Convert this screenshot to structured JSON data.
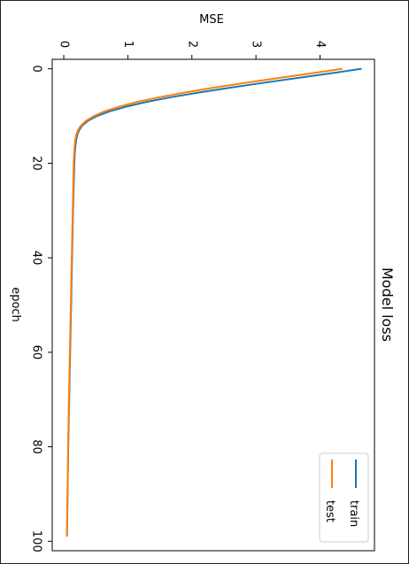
{
  "chart_data": {
    "type": "line",
    "orientation": "rotated-90-clockwise",
    "title": "Model loss",
    "xlabel": "epoch",
    "ylabel": "MSE",
    "xlim": [
      -2,
      102
    ],
    "ylim": [
      -0.18,
      4.85
    ],
    "x_ticks": [
      0,
      20,
      40,
      60,
      80,
      100
    ],
    "y_ticks": [
      0,
      1,
      2,
      3,
      4
    ],
    "legend_position": "lower-right",
    "grid": false,
    "series": [
      {
        "name": "train",
        "color": "#1f77b4",
        "x": [
          0,
          1,
          2,
          3,
          4,
          5,
          6,
          7,
          8,
          9,
          10,
          11,
          12,
          13,
          14,
          15,
          16,
          17,
          18,
          19,
          20,
          25,
          30,
          40,
          50,
          60,
          70,
          80,
          90,
          99
        ],
        "y": [
          4.65,
          4.15,
          3.62,
          3.1,
          2.6,
          2.12,
          1.68,
          1.3,
          0.98,
          0.72,
          0.52,
          0.38,
          0.29,
          0.24,
          0.21,
          0.195,
          0.185,
          0.178,
          0.172,
          0.168,
          0.165,
          0.155,
          0.145,
          0.13,
          0.115,
          0.1,
          0.085,
          0.07,
          0.06,
          0.05
        ]
      },
      {
        "name": "test",
        "color": "#ff7f0e",
        "x": [
          0,
          1,
          2,
          3,
          4,
          5,
          6,
          7,
          8,
          9,
          10,
          11,
          12,
          13,
          14,
          15,
          16,
          17,
          18,
          19,
          20,
          25,
          30,
          40,
          50,
          60,
          70,
          80,
          90,
          99
        ],
        "y": [
          4.35,
          3.85,
          3.32,
          2.82,
          2.34,
          1.9,
          1.5,
          1.15,
          0.87,
          0.64,
          0.47,
          0.35,
          0.27,
          0.22,
          0.195,
          0.18,
          0.172,
          0.166,
          0.162,
          0.158,
          0.155,
          0.148,
          0.14,
          0.125,
          0.11,
          0.095,
          0.08,
          0.068,
          0.058,
          0.05
        ]
      }
    ]
  }
}
